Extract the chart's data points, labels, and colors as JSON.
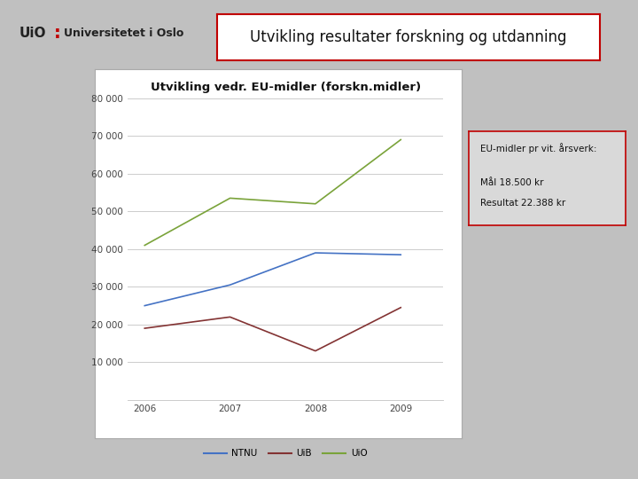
{
  "title_main": "Utvikling resultater forskning og utdanning",
  "chart_title": "Utvikling vedr. EU-midler (forskn.midler)",
  "years": [
    2006,
    2007,
    2008,
    2009
  ],
  "ntnu": [
    25000,
    30500,
    39000,
    38500
  ],
  "uib": [
    19000,
    22000,
    13000,
    24500
  ],
  "uio": [
    41000,
    53500,
    52000,
    69000
  ],
  "ylim": [
    0,
    80000
  ],
  "yticks": [
    10000,
    20000,
    30000,
    40000,
    50000,
    60000,
    70000,
    80000
  ],
  "ytick_labels": [
    "10 000",
    "20 000",
    "30 000",
    "40 000",
    "50 000",
    "60 000",
    "70 000",
    "80 000"
  ],
  "color_ntnu": "#4472C4",
  "color_uib": "#833333",
  "color_uio": "#7AA33A",
  "annotation_title": "EU-midler pr vit. årsverk:",
  "annotation_line1": "Mål 18.500 kr",
  "annotation_line2": "Resultat 22.388 kr",
  "figure_bg": "#C0C0C0",
  "chart_panel_bg": "#FFFFFF",
  "annotation_bg": "#D9D9D9",
  "title_border_color": "#C00000",
  "ann_border_color": "#C00000"
}
